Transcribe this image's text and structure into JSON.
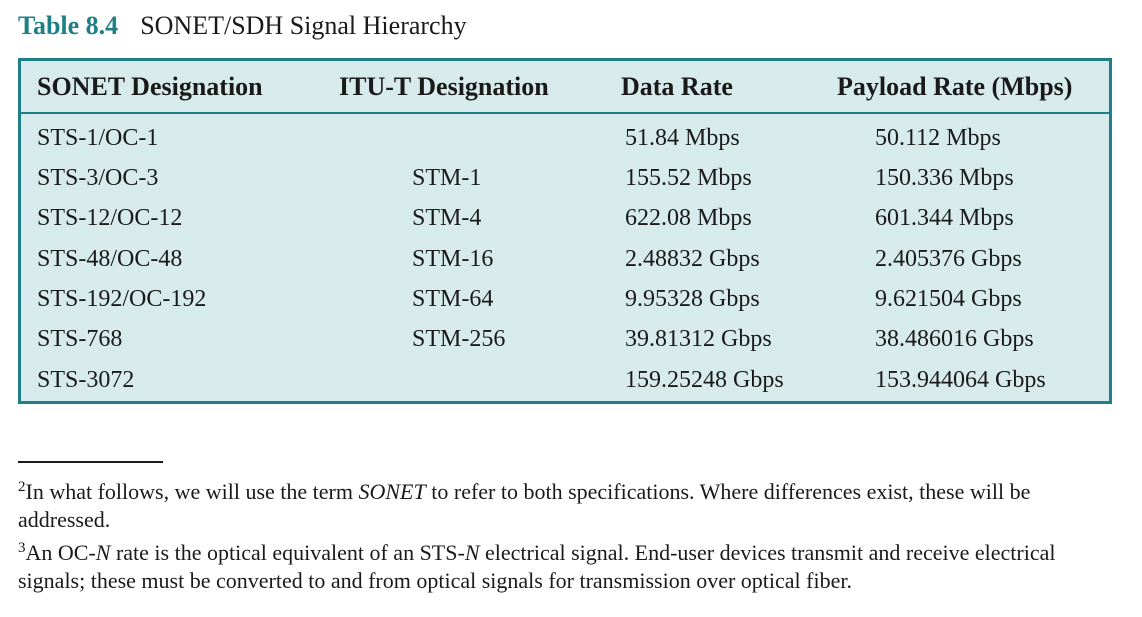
{
  "caption": {
    "label": "Table 8.4",
    "title": "SONET/SDH Signal Hierarchy"
  },
  "table": {
    "headers": [
      "SONET Designation",
      "ITU-T Designation",
      "Data Rate",
      "Payload Rate (Mbps)"
    ],
    "rows": [
      [
        "STS-1/OC-1",
        "",
        "51.84 Mbps",
        "50.112 Mbps"
      ],
      [
        "STS-3/OC-3",
        "STM-1",
        "155.52 Mbps",
        "150.336 Mbps"
      ],
      [
        "STS-12/OC-12",
        "STM-4",
        "622.08 Mbps",
        "601.344 Mbps"
      ],
      [
        "STS-48/OC-48",
        "STM-16",
        "2.48832 Gbps",
        "2.405376 Gbps"
      ],
      [
        "STS-192/OC-192",
        "STM-64",
        "9.95328 Gbps",
        "9.621504 Gbps"
      ],
      [
        "STS-768",
        "STM-256",
        "39.81312 Gbps",
        "38.486016 Gbps"
      ],
      [
        "STS-3072",
        "",
        "159.25248 Gbps",
        "153.944064 Gbps"
      ]
    ]
  },
  "footnotes": {
    "fn2": {
      "number": "2",
      "text_before": "In what follows, we will use the term ",
      "term": "SONET",
      "text_after": " to refer to both specifications. Where differences exist, these will be addressed."
    },
    "fn3": {
      "number": "3",
      "part1": "An OC-",
      "n1": "N",
      "part2": " rate is the optical equivalent of an STS-",
      "n2": "N",
      "part3": " electrical signal. End-user devices transmit and receive electrical signals; these must be converted to and from optical signals for transmission over optical fiber."
    }
  },
  "colors": {
    "accent": "#1f7f86",
    "table_background": "#d8ebec",
    "text": "#1a1a1a"
  }
}
